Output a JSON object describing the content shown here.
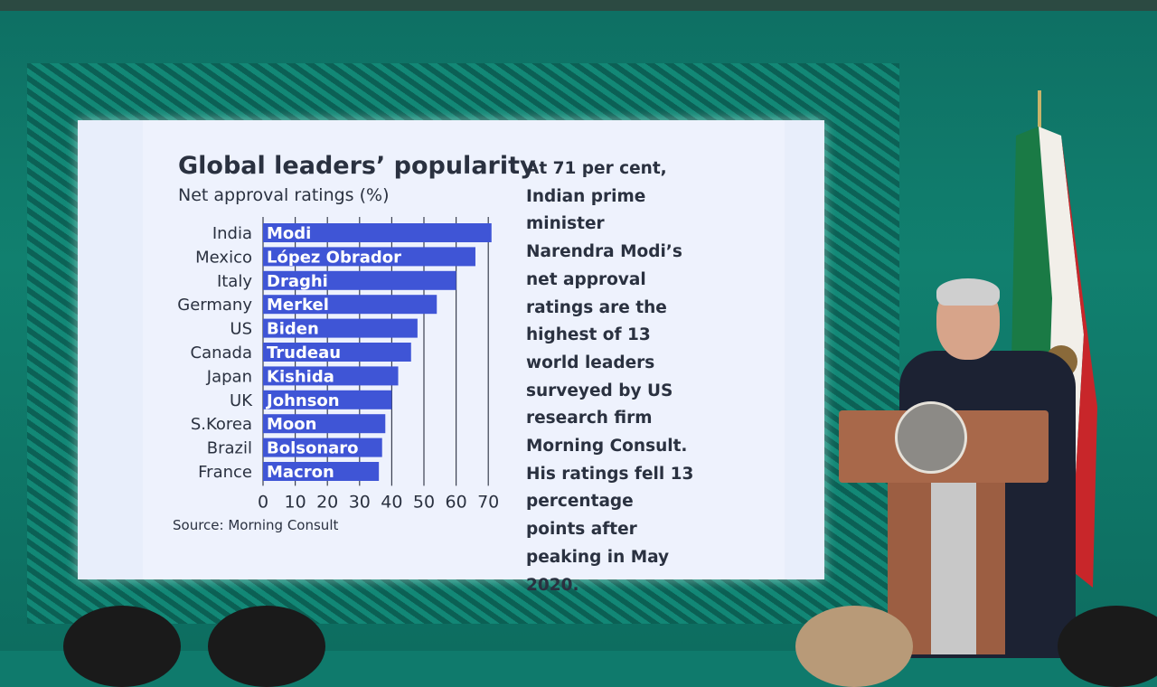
{
  "chart_data": {
    "type": "bar",
    "orientation": "horizontal",
    "title": "Global leaders’ popularity",
    "subtitle": "Net approval ratings (%)",
    "categories": [
      "India",
      "Mexico",
      "Italy",
      "Germany",
      "US",
      "Canada",
      "Japan",
      "UK",
      "S.Korea",
      "Brazil",
      "France"
    ],
    "bar_labels": [
      "Modi",
      "López Obrador",
      "Draghi",
      "Merkel",
      "Biden",
      "Trudeau",
      "Kishida",
      "Johnson",
      "Moon",
      "Bolsonaro",
      "Macron"
    ],
    "values": [
      71,
      66,
      60,
      54,
      48,
      46,
      42,
      40,
      38,
      37,
      36
    ],
    "xlim": [
      0,
      72
    ],
    "xticks": [
      "0",
      "10",
      "20",
      "30",
      "40",
      "50",
      "60",
      "70"
    ],
    "grid": "vertical",
    "bar_color": "#3f55d6",
    "source": "Source: Morning Consult"
  },
  "annotation": "At 71 per cent, Indian prime minister Narendra Modi’s net approval ratings are the highest of 13 world leaders surveyed by US research firm Morning Consult. His ratings fell 13 percentage points after peaking in May 2020."
}
